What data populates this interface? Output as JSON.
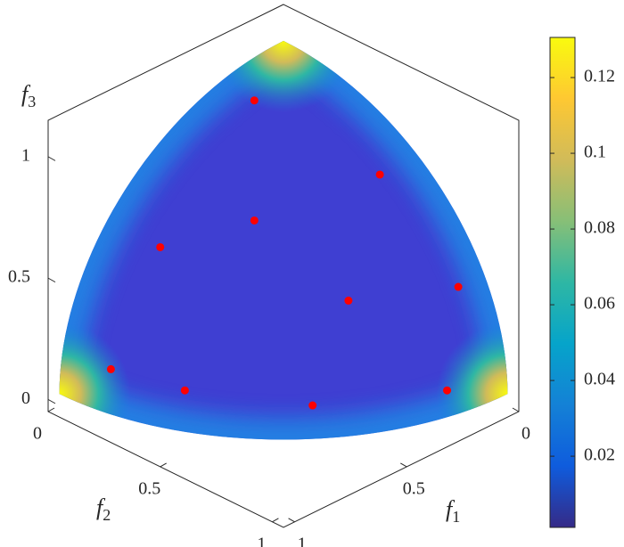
{
  "chart_data": {
    "type": "surface3d",
    "xlabel": {
      "symbol": "f",
      "subscript": "1"
    },
    "ylabel": {
      "symbol": "f",
      "subscript": "2"
    },
    "zlabel": {
      "symbol": "f",
      "subscript": "3"
    },
    "xlim": [
      0,
      1.05
    ],
    "ylim": [
      0,
      1.05
    ],
    "zlim": [
      -0.05,
      1.15
    ],
    "xticks": [
      0,
      0.5,
      1
    ],
    "yticks": [
      0,
      0.5,
      1
    ],
    "zticks": [
      0,
      0.5,
      1
    ],
    "points": {
      "color": "#ff0000",
      "x": [
        0.28,
        0.16,
        0.56,
        0.77,
        0.12,
        0.46,
        0.96,
        0.88,
        0.63,
        0.24
      ],
      "y": [
        0.15,
        0.59,
        0.43,
        0.22,
        0.9,
        0.75,
        0.19,
        0.44,
        0.76,
        0.97
      ],
      "z": [
        0.95,
        0.79,
        0.71,
        0.6,
        0.45,
        0.48,
        0.17,
        0.16,
        0.13,
        0.11
      ]
    },
    "colorbar": {
      "clim": [
        0.0012,
        0.1306
      ],
      "ticks": [
        0.02,
        0.04,
        0.06,
        0.08,
        0.1,
        0.12
      ],
      "colors": [
        "#352a87",
        "#0f5cdd",
        "#1481d6",
        "#06a4ca",
        "#2eb7a4",
        "#87bf77",
        "#d1bb59",
        "#fec832",
        "#f9fb0e"
      ]
    }
  }
}
